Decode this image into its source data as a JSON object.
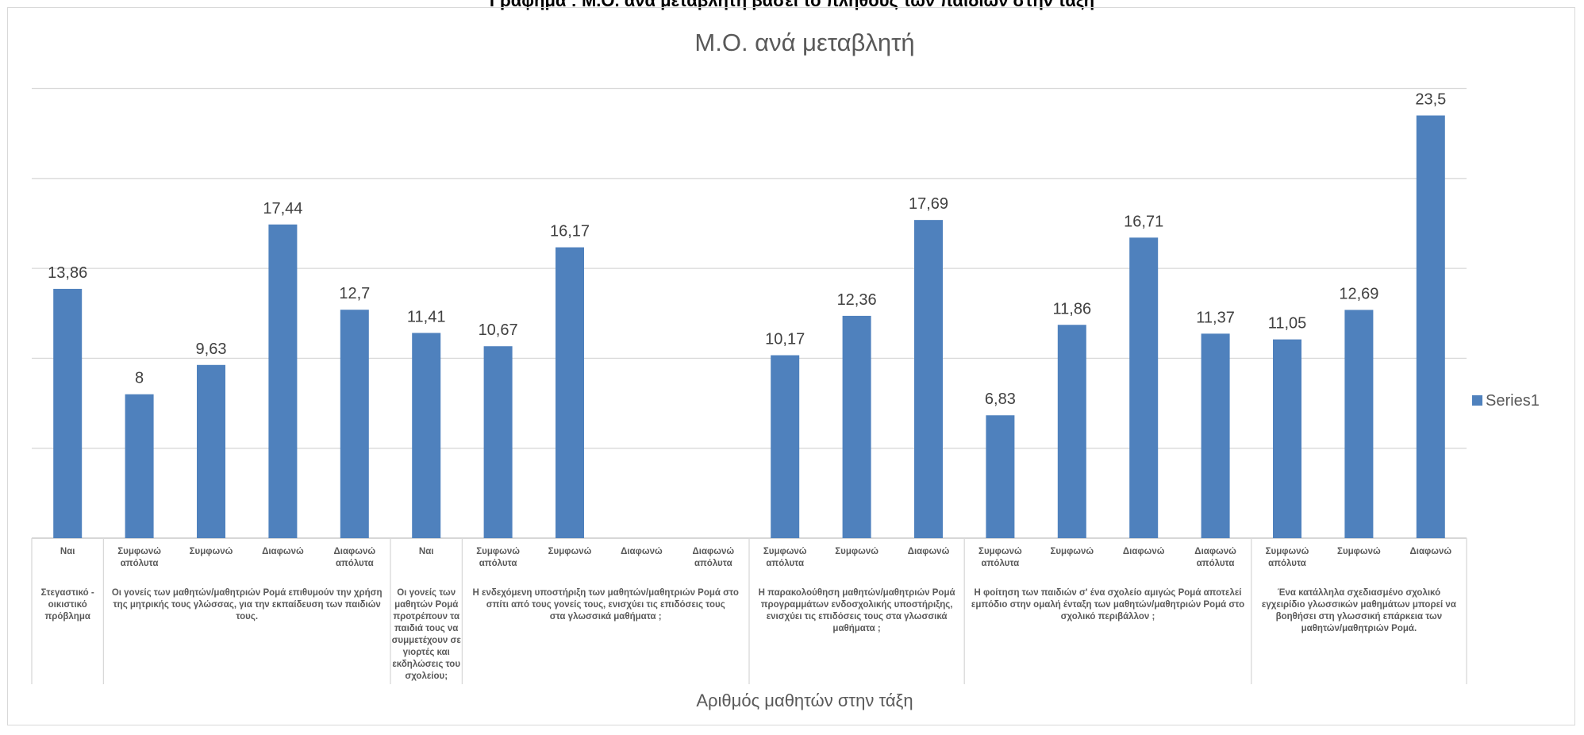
{
  "page": {
    "top_caption": "Γράφημα : Μ.Ο. ανά μεταβλητή βάσει το πλήθους των παιδιών στην τάξη"
  },
  "chart_data": {
    "type": "bar",
    "title": "Μ.Ο. ανά μεταβλητή",
    "xlabel": "Αριθμός μαθητών στην τάξη",
    "ylabel": "",
    "ylim": [
      0,
      25
    ],
    "grid": true,
    "legend": {
      "position": "right",
      "entries": [
        "Series1"
      ]
    },
    "bar_color": "#4f81bd",
    "categories": [
      "Ναι",
      "Συμφωνώ απόλυτα",
      "Συμφωνώ",
      "Διαφωνώ",
      "Διαφωνώ απόλυτα",
      "Ναι",
      "Συμφωνώ απόλυτα",
      "Συμφωνώ",
      "Διαφωνώ",
      "Διαφωνώ απόλυτα",
      "Συμφωνώ απόλυτα",
      "Συμφωνώ",
      "Διαφωνώ",
      "Συμφωνώ απόλυτα",
      "Συμφωνώ",
      "Διαφωνώ",
      "Διαφωνώ απόλυτα",
      "Συμφωνώ απόλυτα",
      "Συμφωνώ",
      "Διαφωνώ"
    ],
    "series": [
      {
        "name": "Series1",
        "values": [
          13.86,
          8,
          9.63,
          17.44,
          12.7,
          11.41,
          10.67,
          16.17,
          null,
          null,
          10.17,
          12.36,
          17.69,
          6.83,
          11.86,
          16.71,
          11.37,
          11.05,
          12.69,
          23.5
        ]
      }
    ],
    "data_labels": [
      "13,86",
      "8",
      "9,63",
      "17,44",
      "12,7",
      "11,41",
      "10,67",
      "16,17",
      "",
      "",
      "10,17",
      "12,36",
      "17,69",
      "6,83",
      "11,86",
      "16,71",
      "11,37",
      "11,05",
      "12,69",
      "23,5"
    ],
    "groups": [
      {
        "label": "Στεγαστικό - οικιστικό πρόβλημα",
        "count": 1
      },
      {
        "label": "Οι γονείς των μαθητών/μαθητριών Ρομά επιθυμούν την χρήση της μητρικής τους γλώσσας, για την εκπαίδευση των παιδιών τους.",
        "count": 4
      },
      {
        "label": "Οι γονείς των μαθητών Ρομά προτρέπουν τα παιδιά τους να συμμετέχουν σε γιορτές και εκδηλώσεις του σχολείου;",
        "count": 1
      },
      {
        "label": "Η ενδεχόμενη υποστήριξη των μαθητών/μαθητριών Ρομά στο σπίτι από τους γονείς τους, ενισχύει τις επιδόσεις τους στα γλωσσικά μαθήματα ;",
        "count": 4
      },
      {
        "label": "Η παρακολούθηση μαθητών/μαθητριών Ρομά προγραμμάτων ενδοσχολικής υποστήριξης, ενισχύει τις επιδόσεις τους στα γλωσσικά μαθήματα ;",
        "count": 3
      },
      {
        "label": "Η φοίτηση των παιδιών σ' ένα σχολείο αμιγώς Ρομά αποτελεί εμπόδιο στην ομαλή ένταξη των μαθητών/μαθητριών Ρομά στο σχολικό περιβάλλον ;",
        "count": 4
      },
      {
        "label": "Ένα κατάλληλα σχεδιασμένο σχολικό εγχειρίδιο γλωσσικών μαθημάτων μπορεί να βοηθήσει στη γλωσσική επάρκεια των μαθητών/μαθητριών Ρομά.",
        "count": 3
      }
    ]
  }
}
